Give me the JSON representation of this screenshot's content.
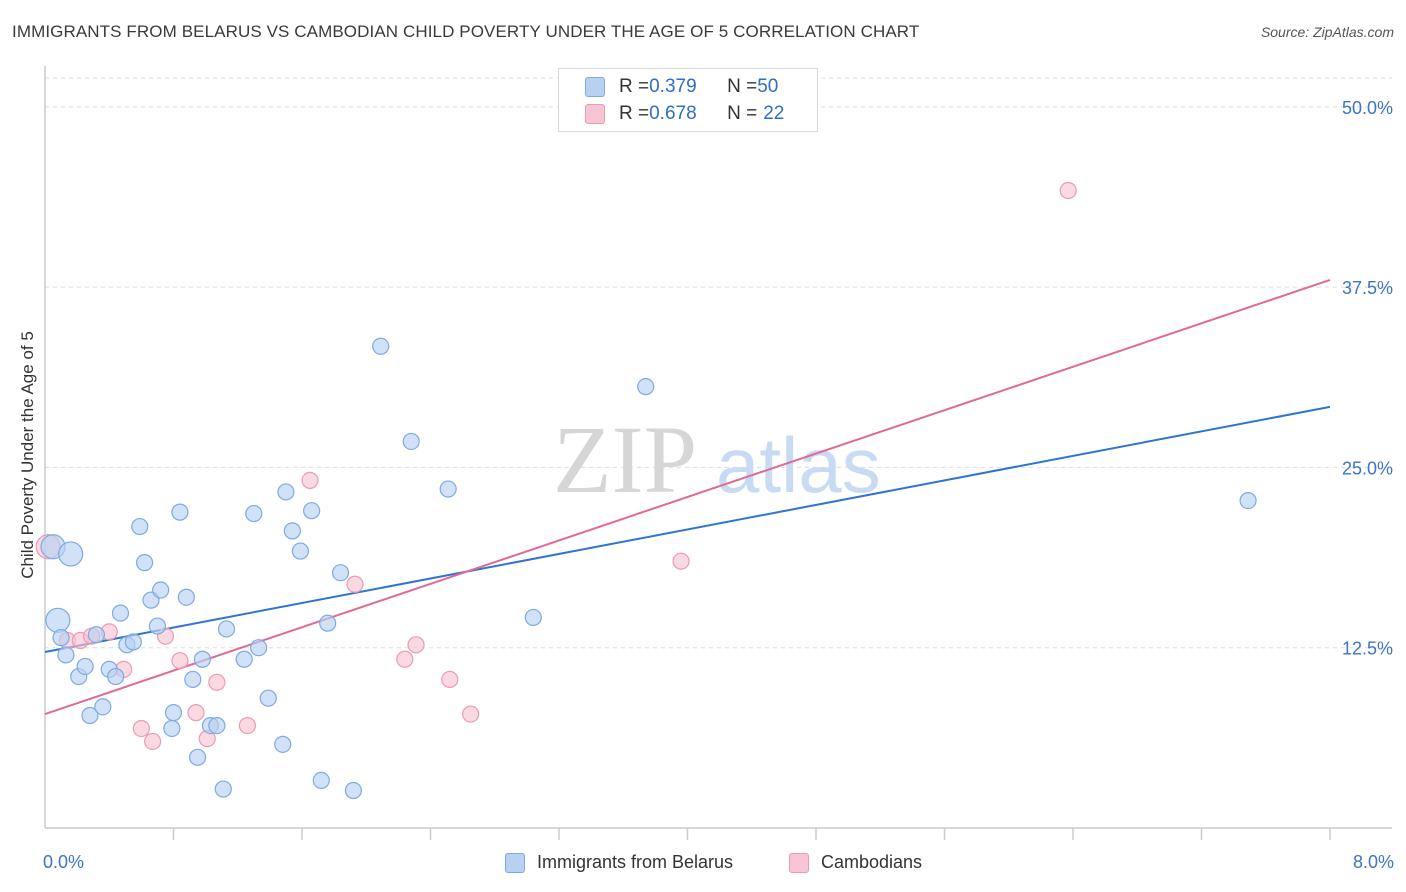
{
  "title": "IMMIGRANTS FROM BELARUS VS CAMBODIAN CHILD POVERTY UNDER THE AGE OF 5 CORRELATION CHART",
  "source": "Source: ZipAtlas.com",
  "watermark": {
    "zip": "ZIP",
    "atlas": "atlas"
  },
  "legend_top": [
    {
      "r_label": "R = ",
      "r_value": "0.379",
      "n_label": "N = ",
      "n_value": "50"
    },
    {
      "r_label": "R = ",
      "r_value": "0.678",
      "n_label": "N = ",
      "n_value": "22"
    }
  ],
  "legend_bottom": [
    "Immigrants from Belarus",
    "Cambodians"
  ],
  "colors": {
    "blue_fill": "#b8d1f3",
    "blue_stroke": "#7eaae0",
    "blue_line": "#2e74d0",
    "pink_fill": "#f7c4d3",
    "pink_stroke": "#eb9bb4",
    "pink_line": "#e06a96",
    "axis_text": "#3d74c9",
    "grid": "#dddddd"
  },
  "chart_data": {
    "type": "scatter",
    "title": "IMMIGRANTS FROM BELARUS VS CAMBODIAN CHILD POVERTY UNDER THE AGE OF 5 CORRELATION CHART",
    "xlabel": "",
    "ylabel": "Child Poverty Under the Age of 5",
    "xlim": [
      0,
      8
    ],
    "ylim": [
      0,
      52
    ],
    "x_tick_labels": [
      "0.0%",
      "8.0%"
    ],
    "y_ticks": [
      12.5,
      25.0,
      37.5,
      50.0
    ],
    "y_tick_labels": [
      "12.5%",
      "25.0%",
      "37.5%",
      "50.0%"
    ],
    "grid": true,
    "series": [
      {
        "name": "Immigrants from Belarus",
        "color": "#b8d1f3",
        "points": [
          [
            0.05,
            19.5
          ],
          [
            0.08,
            14.4
          ],
          [
            0.1,
            13.2
          ],
          [
            0.13,
            12.0
          ],
          [
            0.16,
            19.0
          ],
          [
            0.21,
            10.5
          ],
          [
            0.25,
            11.2
          ],
          [
            0.28,
            7.8
          ],
          [
            0.32,
            13.4
          ],
          [
            0.36,
            8.4
          ],
          [
            0.4,
            11.0
          ],
          [
            0.44,
            10.5
          ],
          [
            0.47,
            14.9
          ],
          [
            0.51,
            12.7
          ],
          [
            0.55,
            12.9
          ],
          [
            0.59,
            20.9
          ],
          [
            0.62,
            18.4
          ],
          [
            0.66,
            15.8
          ],
          [
            0.7,
            14.0
          ],
          [
            0.72,
            16.5
          ],
          [
            0.79,
            6.9
          ],
          [
            0.8,
            8.0
          ],
          [
            0.84,
            21.9
          ],
          [
            0.88,
            16.0
          ],
          [
            0.92,
            10.3
          ],
          [
            0.95,
            4.9
          ],
          [
            0.98,
            11.7
          ],
          [
            1.03,
            7.1
          ],
          [
            1.07,
            7.1
          ],
          [
            1.11,
            2.7
          ],
          [
            1.13,
            13.8
          ],
          [
            1.24,
            11.7
          ],
          [
            1.3,
            21.8
          ],
          [
            1.33,
            12.5
          ],
          [
            1.39,
            9.0
          ],
          [
            1.48,
            5.8
          ],
          [
            1.5,
            23.3
          ],
          [
            1.54,
            20.6
          ],
          [
            1.59,
            19.2
          ],
          [
            1.66,
            22.0
          ],
          [
            1.72,
            3.3
          ],
          [
            1.76,
            14.2
          ],
          [
            1.84,
            17.7
          ],
          [
            1.92,
            2.6
          ],
          [
            2.09,
            33.4
          ],
          [
            2.28,
            26.8
          ],
          [
            2.51,
            23.5
          ],
          [
            3.04,
            14.6
          ],
          [
            3.74,
            30.6
          ],
          [
            7.49,
            22.7
          ]
        ],
        "big_points": [
          [
            0.05,
            19.5
          ],
          [
            0.08,
            14.4
          ],
          [
            0.16,
            19.0
          ]
        ],
        "trend": {
          "x": [
            0,
            8
          ],
          "y": [
            12.2,
            29.2
          ]
        }
      },
      {
        "name": "Cambodians",
        "color": "#f7c4d3",
        "points": [
          [
            0.02,
            19.5
          ],
          [
            0.14,
            13.0
          ],
          [
            0.22,
            13.0
          ],
          [
            0.29,
            13.3
          ],
          [
            0.4,
            13.6
          ],
          [
            0.49,
            11.0
          ],
          [
            0.6,
            6.9
          ],
          [
            0.67,
            6.0
          ],
          [
            0.75,
            13.3
          ],
          [
            0.84,
            11.6
          ],
          [
            0.94,
            8.0
          ],
          [
            1.01,
            6.2
          ],
          [
            1.07,
            10.1
          ],
          [
            1.26,
            7.1
          ],
          [
            1.65,
            24.1
          ],
          [
            1.93,
            16.9
          ],
          [
            2.24,
            11.7
          ],
          [
            2.31,
            12.7
          ],
          [
            2.52,
            10.3
          ],
          [
            2.65,
            7.9
          ],
          [
            3.96,
            18.5
          ],
          [
            6.37,
            44.2
          ]
        ],
        "big_points": [
          [
            0.02,
            19.5
          ]
        ],
        "trend": {
          "x": [
            0,
            8
          ],
          "y": [
            7.9,
            38.0
          ]
        }
      }
    ]
  }
}
